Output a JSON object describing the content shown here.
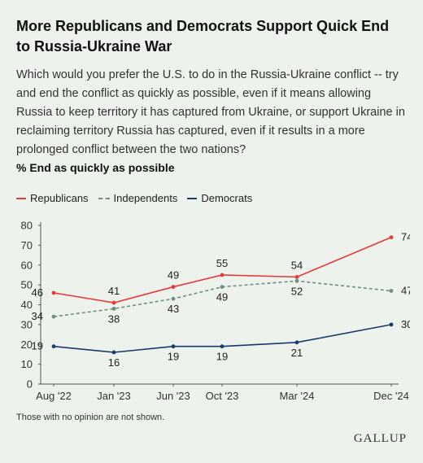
{
  "title": "More Republicans and Democrats Support Quick End to Russia-Ukraine War",
  "question": "Which would you prefer the U.S. to do in the Russia-Ukraine conflict -- try and end the conflict as quickly as possible, even if it means allowing Russia to keep territory it has captured from Ukraine, or support Ukraine in reclaiming territory Russia has captured, even if it results in a more prolonged conflict between the two nations?",
  "subtitle": "% End as quickly as possible",
  "footnote": "Those with no opinion are not shown.",
  "brand": "GALLUP",
  "chart_data": {
    "type": "line",
    "categories": [
      "Aug '22",
      "Jan '23",
      "Jun '23",
      "Oct '23",
      "Mar '24",
      "Dec '24"
    ],
    "ylim": [
      0,
      80
    ],
    "yticks": [
      0,
      10,
      20,
      30,
      40,
      50,
      60,
      70,
      80
    ],
    "grid": false,
    "legend_position": "top-left",
    "series": [
      {
        "name": "Republicans",
        "color": "#e8393d",
        "dash": false,
        "values": [
          46,
          41,
          49,
          55,
          54,
          74
        ]
      },
      {
        "name": "Independents",
        "color": "#6f8f80",
        "dash": true,
        "values": [
          34,
          38,
          43,
          49,
          52,
          47
        ]
      },
      {
        "name": "Democrats",
        "color": "#1b3a6b",
        "dash": false,
        "values": [
          19,
          16,
          19,
          19,
          21,
          30
        ]
      }
    ]
  }
}
